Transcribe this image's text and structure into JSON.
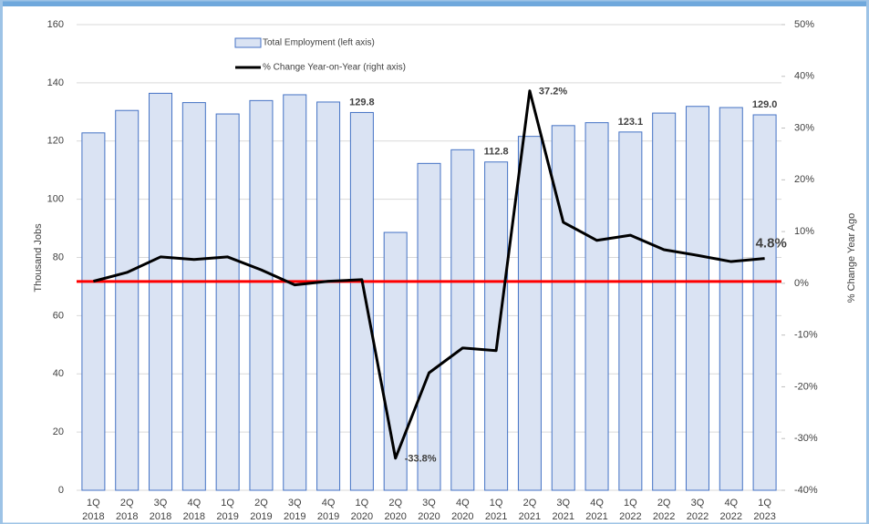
{
  "chart_data": {
    "type": "bar-line",
    "categories": [
      "1Q 2018",
      "2Q 2018",
      "3Q 2018",
      "4Q 2018",
      "1Q 2019",
      "2Q 2019",
      "3Q 2019",
      "4Q 2019",
      "1Q 2020",
      "2Q 2020",
      "3Q 2020",
      "4Q 2020",
      "1Q 2021",
      "2Q 2021",
      "3Q 2021",
      "4Q 2021",
      "1Q 2022",
      "2Q 2022",
      "3Q 2022",
      "4Q 2022",
      "1Q 2023"
    ],
    "series": [
      {
        "name": "Total Employment (left axis)",
        "type": "bar",
        "color": "#dae3f3",
        "edge_color": "#4472c4",
        "values": [
          122.8,
          130.5,
          136.4,
          133.2,
          129.3,
          133.9,
          135.9,
          133.4,
          129.8,
          88.6,
          112.3,
          117.0,
          112.8,
          121.6,
          125.3,
          126.3,
          123.1,
          129.6,
          131.9,
          131.5,
          129.0
        ],
        "value_labels": [
          null,
          null,
          null,
          null,
          null,
          null,
          null,
          null,
          "129.8",
          null,
          null,
          null,
          "112.8",
          null,
          null,
          null,
          "123.1",
          null,
          null,
          null,
          "129.0"
        ]
      },
      {
        "name": "% Change Year-on-Year (right axis)",
        "type": "line",
        "axis": "y2",
        "color": "#000000",
        "values": [
          0.4,
          2.1,
          5.1,
          4.6,
          5.1,
          2.6,
          -0.3,
          0.4,
          0.7,
          -33.8,
          -17.3,
          -12.5,
          -13.0,
          37.2,
          11.8,
          8.3,
          9.3,
          6.5,
          5.4,
          4.2,
          4.8
        ],
        "value_labels": [
          null,
          null,
          null,
          null,
          null,
          null,
          null,
          null,
          null,
          "-33.8%",
          null,
          null,
          null,
          "37.2%",
          null,
          null,
          null,
          null,
          null,
          null,
          "4.8%"
        ]
      }
    ],
    "ylabel": "Thousand Jobs",
    "y2label": "% Change Year Ago",
    "ylim": [
      0,
      160
    ],
    "yticks": [
      0,
      20,
      40,
      60,
      80,
      100,
      120,
      140,
      160
    ],
    "y2lim": [
      -40,
      50
    ],
    "y2ticks": [
      {
        "value": -40,
        "label": "-40%"
      },
      {
        "value": -30,
        "label": "-30%"
      },
      {
        "value": -20,
        "label": "-20%"
      },
      {
        "value": -10,
        "label": "-10%"
      },
      {
        "value": 0,
        "label": "0%"
      },
      {
        "value": 10,
        "label": "10%"
      },
      {
        "value": 20,
        "label": "20%"
      },
      {
        "value": 30,
        "label": "30%"
      },
      {
        "value": 40,
        "label": "40%"
      },
      {
        "value": 50,
        "label": "50%"
      }
    ],
    "grid": true,
    "zero_line_color": "#ff0000"
  }
}
